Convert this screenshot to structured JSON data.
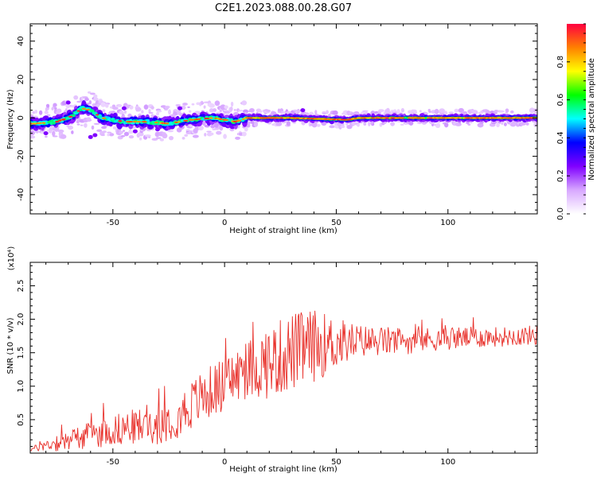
{
  "title": "C2E1.2023.088.00.28.G07",
  "chart_data": [
    {
      "type": "heatmap",
      "xlabel": "Height of straight line (km)",
      "ylabel": "Frequency (Hz)",
      "xlim": [
        -87,
        140
      ],
      "ylim": [
        -50,
        49
      ],
      "xticks": [
        -50,
        0,
        50,
        100
      ],
      "yticks": [
        -40,
        -20,
        0,
        20,
        40
      ],
      "colorbar": {
        "label": "Normalized spectral amplitude",
        "range": [
          0,
          1
        ],
        "ticks": [
          "0.0",
          "0.2",
          "0.4",
          "0.6",
          "0.8"
        ],
        "colormap": [
          "#ffffff",
          "#d8a8ff",
          "#8000ff",
          "#0000ff",
          "#00ffff",
          "#00ff00",
          "#ffff00",
          "#ff8000",
          "#ff0040"
        ]
      },
      "ridge": [
        {
          "x": -85,
          "y": -3
        },
        {
          "x": -75,
          "y": -2
        },
        {
          "x": -68,
          "y": 1
        },
        {
          "x": -64,
          "y": 5
        },
        {
          "x": -60,
          "y": 4
        },
        {
          "x": -55,
          "y": 0
        },
        {
          "x": -45,
          "y": -2
        },
        {
          "x": -35,
          "y": -2
        },
        {
          "x": -25,
          "y": -3
        },
        {
          "x": -15,
          "y": -1
        },
        {
          "x": -5,
          "y": 0
        },
        {
          "x": 5,
          "y": -2
        },
        {
          "x": 10,
          "y": 0
        },
        {
          "x": 30,
          "y": 0
        },
        {
          "x": 55,
          "y": -1
        },
        {
          "x": 60,
          "y": 0
        },
        {
          "x": 140,
          "y": 0
        }
      ]
    },
    {
      "type": "line",
      "xlabel": "Height of straight line (km)",
      "ylabel": "SNR (10 * v/v)",
      "yscale_label": "(x10⁴)",
      "xlim": [
        -87,
        140
      ],
      "ylim": [
        0,
        2.85
      ],
      "xticks": [
        -50,
        0,
        50,
        100
      ],
      "yticks": [
        "0.5",
        "1.0",
        "1.5",
        "2.0",
        "2.5"
      ],
      "line_color": "#e8302a",
      "envelope": {
        "x": [
          -87,
          -75,
          -60,
          -45,
          -30,
          -20,
          -10,
          0,
          10,
          20,
          30,
          40,
          50,
          60,
          80,
          100,
          120,
          140
        ],
        "base": [
          0.05,
          0.15,
          0.25,
          0.35,
          0.4,
          0.55,
          0.8,
          1.0,
          1.2,
          1.3,
          1.45,
          1.55,
          1.6,
          1.65,
          1.65,
          1.7,
          1.72,
          1.75
        ],
        "amp": [
          0.05,
          0.3,
          0.4,
          0.5,
          0.6,
          0.7,
          0.8,
          0.8,
          0.9,
          1.1,
          1.2,
          1.1,
          0.8,
          0.5,
          0.4,
          0.35,
          0.3,
          0.3
        ]
      }
    }
  ]
}
